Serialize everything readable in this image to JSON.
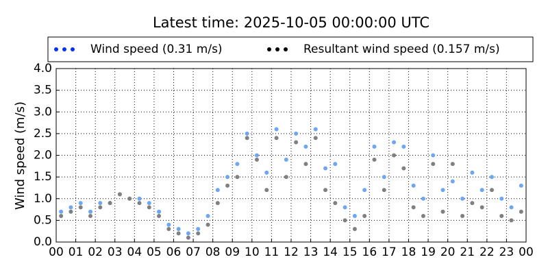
{
  "chart_data": {
    "type": "scatter",
    "title": "Latest time: 2025-10-05 00:00:00 UTC",
    "y_label": "Wind speed (m/s)",
    "xlim": [
      0,
      24
    ],
    "ylim": [
      0,
      4
    ],
    "xticks": [
      {
        "value": 0,
        "label": "00"
      },
      {
        "value": 1,
        "label": "01"
      },
      {
        "value": 2,
        "label": "02"
      },
      {
        "value": 3,
        "label": "03"
      },
      {
        "value": 4,
        "label": "04"
      },
      {
        "value": 5,
        "label": "05"
      },
      {
        "value": 6,
        "label": "06"
      },
      {
        "value": 7,
        "label": "07"
      },
      {
        "value": 8,
        "label": "08"
      },
      {
        "value": 9,
        "label": "09"
      },
      {
        "value": 10,
        "label": "10"
      },
      {
        "value": 11,
        "label": "11"
      },
      {
        "value": 12,
        "label": "12"
      },
      {
        "value": 13,
        "label": "13"
      },
      {
        "value": 14,
        "label": "14"
      },
      {
        "value": 15,
        "label": "15"
      },
      {
        "value": 16,
        "label": "16"
      },
      {
        "value": 17,
        "label": "17"
      },
      {
        "value": 18,
        "label": "18"
      },
      {
        "value": 19,
        "label": "19"
      },
      {
        "value": 20,
        "label": "20"
      },
      {
        "value": 21,
        "label": "21"
      },
      {
        "value": 22,
        "label": "22"
      },
      {
        "value": 23,
        "label": "23"
      },
      {
        "value": 24,
        "label": "00"
      }
    ],
    "yticks": [
      {
        "value": 0,
        "label": "0.0"
      },
      {
        "value": 0.5,
        "label": "0.5"
      },
      {
        "value": 1,
        "label": "1.0"
      },
      {
        "value": 1.5,
        "label": "1.5"
      },
      {
        "value": 2,
        "label": "2.0"
      },
      {
        "value": 2.5,
        "label": "2.5"
      },
      {
        "value": 3,
        "label": "3.0"
      },
      {
        "value": 3.5,
        "label": "3.5"
      },
      {
        "value": 4,
        "label": "4.0"
      }
    ],
    "grid": true,
    "series": [
      {
        "name": "Wind speed (0.31 m/s)",
        "color": "#0033ff",
        "point_color": "#6ea6f0",
        "x": [
          0.25,
          0.75,
          1.25,
          1.75,
          2.25,
          2.75,
          3.25,
          3.75,
          4.25,
          4.75,
          5.25,
          5.75,
          6.25,
          6.75,
          7.25,
          7.75,
          8.25,
          8.75,
          9.25,
          9.75,
          10.25,
          10.75,
          11.25,
          11.75,
          12.25,
          12.75,
          13.25,
          13.75,
          14.25,
          14.75,
          15.25,
          15.75,
          16.25,
          16.75,
          17.25,
          17.75,
          18.25,
          18.75,
          19.25,
          19.75,
          20.25,
          20.75,
          21.25,
          21.75,
          22.25,
          22.75,
          23.25,
          23.75
        ],
        "values": [
          0.7,
          0.8,
          0.9,
          0.7,
          0.9,
          0.9,
          1.1,
          1.0,
          1.0,
          0.9,
          0.7,
          0.4,
          0.3,
          0.2,
          0.3,
          0.6,
          1.2,
          1.5,
          1.8,
          2.5,
          2.0,
          1.6,
          2.6,
          1.9,
          2.5,
          2.2,
          2.6,
          1.7,
          1.8,
          0.8,
          0.6,
          1.2,
          2.2,
          1.5,
          2.3,
          2.2,
          1.3,
          1.0,
          2.0,
          1.2,
          1.4,
          1.0,
          1.6,
          1.2,
          1.5,
          1.0,
          0.8,
          1.3
        ]
      },
      {
        "name": "Resultant wind speed (0.157 m/s)",
        "color": "#000000",
        "point_color": "#808080",
        "x": [
          0.25,
          0.75,
          1.25,
          1.75,
          2.25,
          2.75,
          3.25,
          3.75,
          4.25,
          4.75,
          5.25,
          5.75,
          6.25,
          6.75,
          7.25,
          7.75,
          8.25,
          8.75,
          9.25,
          9.75,
          10.25,
          10.75,
          11.25,
          11.75,
          12.25,
          12.75,
          13.25,
          13.75,
          14.25,
          14.75,
          15.25,
          15.75,
          16.25,
          16.75,
          17.25,
          17.75,
          18.25,
          18.75,
          19.25,
          19.75,
          20.25,
          20.75,
          21.25,
          21.75,
          22.25,
          22.75,
          23.25,
          23.75
        ],
        "values": [
          0.6,
          0.7,
          0.8,
          0.6,
          0.8,
          0.9,
          1.1,
          1.0,
          0.9,
          0.8,
          0.6,
          0.3,
          0.2,
          0.1,
          0.2,
          0.4,
          0.9,
          1.3,
          1.5,
          2.4,
          1.9,
          1.2,
          2.4,
          1.5,
          2.3,
          1.8,
          2.4,
          1.2,
          0.9,
          0.5,
          0.3,
          0.6,
          1.9,
          1.2,
          2.0,
          1.7,
          0.8,
          0.6,
          1.8,
          0.7,
          1.8,
          0.6,
          0.9,
          0.8,
          1.2,
          0.6,
          0.5,
          0.7
        ]
      }
    ]
  }
}
